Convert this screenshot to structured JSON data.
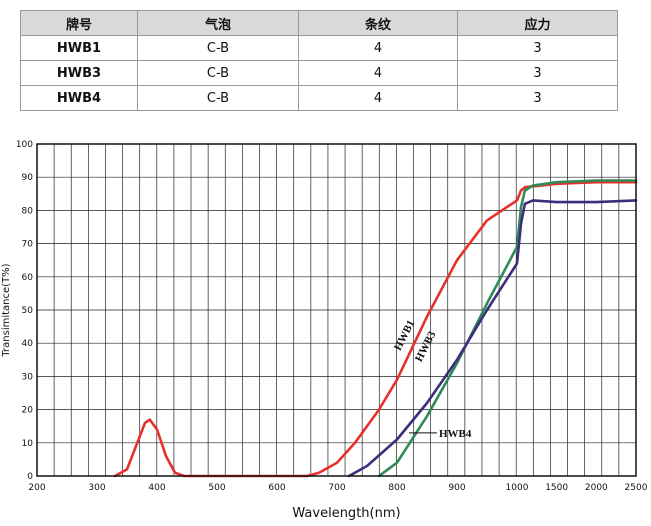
{
  "table": {
    "headers": [
      "牌号",
      "气泡",
      "条纹",
      "应力"
    ],
    "rows": [
      [
        "HWB1",
        "C-B",
        "4",
        "3"
      ],
      [
        "HWB3",
        "C-B",
        "4",
        "3"
      ],
      [
        "HWB4",
        "C-B",
        "4",
        "3"
      ]
    ]
  },
  "chart_data": {
    "type": "line",
    "title": "",
    "xlabel": "Wavelength(nm)",
    "ylabel": "Transimitance(T%)",
    "xlim": [
      200,
      2500
    ],
    "ylim": [
      0,
      100
    ],
    "x_tick_labels": [
      "200",
      "300",
      "400",
      "500",
      "600",
      "700",
      "800",
      "900",
      "1000",
      "1500",
      "2000",
      "2500"
    ],
    "y_tick_labels": [
      "0",
      "10",
      "20",
      "30",
      "40",
      "50",
      "60",
      "70",
      "80",
      "90",
      "100"
    ],
    "grid": true,
    "series": [
      {
        "name": "HWB1",
        "color": "#e8302a",
        "points": [
          [
            330,
            0
          ],
          [
            350,
            2
          ],
          [
            365,
            9
          ],
          [
            380,
            16
          ],
          [
            388,
            17
          ],
          [
            400,
            14
          ],
          [
            415,
            6
          ],
          [
            430,
            1
          ],
          [
            445,
            0
          ],
          [
            650,
            0
          ],
          [
            670,
            1
          ],
          [
            700,
            4
          ],
          [
            730,
            10
          ],
          [
            770,
            20
          ],
          [
            800,
            29
          ],
          [
            850,
            48
          ],
          [
            900,
            65
          ],
          [
            950,
            77
          ],
          [
            1000,
            83
          ],
          [
            1050,
            86
          ],
          [
            1100,
            87
          ],
          [
            1500,
            88
          ],
          [
            2000,
            88.5
          ],
          [
            2500,
            88.5
          ]
        ]
      },
      {
        "name": "HWB3",
        "color": "#2e8b57",
        "points": [
          [
            770,
            0
          ],
          [
            800,
            4
          ],
          [
            850,
            18
          ],
          [
            900,
            34
          ],
          [
            950,
            52
          ],
          [
            1000,
            69
          ],
          [
            1050,
            81
          ],
          [
            1100,
            86
          ],
          [
            1200,
            87.5
          ],
          [
            1500,
            88.5
          ],
          [
            2000,
            89
          ],
          [
            2500,
            89
          ]
        ]
      },
      {
        "name": "HWB4",
        "color": "#3f2d7c",
        "points": [
          [
            720,
            0
          ],
          [
            750,
            3
          ],
          [
            800,
            11
          ],
          [
            850,
            22
          ],
          [
            900,
            35
          ],
          [
            950,
            50
          ],
          [
            1000,
            64
          ],
          [
            1050,
            76
          ],
          [
            1100,
            82
          ],
          [
            1200,
            83
          ],
          [
            1500,
            82.5
          ],
          [
            2000,
            82.5
          ],
          [
            2500,
            83
          ]
        ]
      }
    ]
  }
}
